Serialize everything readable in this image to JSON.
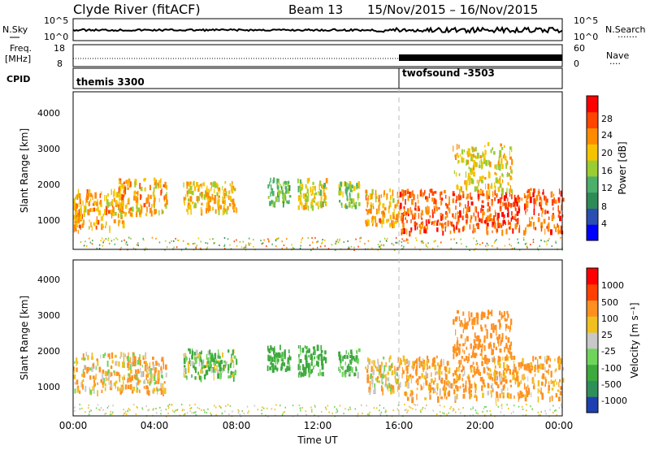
{
  "header": {
    "station": "Clyde River (fitACF)",
    "beam": "Beam 13",
    "date_range": "15/Nov/2015 – 16/Nov/2015"
  },
  "top_panels": {
    "nsky_label": "N.Sky",
    "nsearch_label": "N.Search",
    "nsky_ticks": [
      "10^5",
      "10^0"
    ],
    "nsearch_ticks": [
      "10^5",
      "10^0"
    ],
    "freq_label_1": "Freq.",
    "freq_label_2": "[MHz]",
    "freq_ticks": [
      "18",
      "8"
    ],
    "nave_label": "Nave",
    "nave_ticks": [
      "60",
      "0"
    ],
    "cpid_label": "CPID",
    "cpid_segments": [
      {
        "name": "themis 3300",
        "start_hour": 0,
        "end_hour": 16
      },
      {
        "name": "twofsound -3503",
        "start_hour": 16,
        "end_hour": 24
      }
    ]
  },
  "x_axis": {
    "label": "Time UT",
    "ticks": [
      "00:00",
      "04:00",
      "08:00",
      "12:00",
      "16:00",
      "20:00",
      "00:00"
    ]
  },
  "power_colorbar": {
    "title": "Power [dB]",
    "ticks": [
      "28",
      "24",
      "20",
      "16",
      "12",
      "8",
      "4"
    ],
    "colors": [
      "#0000ff",
      "#2a4fb0",
      "#2e8b57",
      "#4caf6a",
      "#9acd32",
      "#f5c400",
      "#ff8c00",
      "#ff4500",
      "#ff0000"
    ]
  },
  "velocity_colorbar": {
    "title": "Velocity [m s⁻¹]",
    "ticks": [
      "1000",
      "500",
      "100",
      "25",
      "-25",
      "-100",
      "-500",
      "-1000"
    ],
    "colors": [
      "#1f3fb0",
      "#2f8f5a",
      "#3daa3d",
      "#6fd45a",
      "#c8c8c8",
      "#f0c020",
      "#ff9020",
      "#ff4000",
      "#ff0000"
    ]
  },
  "chart_data": [
    {
      "type": "heatmap",
      "title": "Power",
      "xlabel": "Time UT",
      "ylabel": "Slant Range [km]",
      "xlim_hours": [
        0,
        24
      ],
      "ylim": [
        180,
        4600
      ],
      "yticks": [
        "1000",
        "2000",
        "3000",
        "4000"
      ],
      "colorbar_label": "Power [dB]",
      "regions": [
        {
          "t0": 0.0,
          "t1": 0.4,
          "r0": 700,
          "r1": 1500,
          "value_db": 24
        },
        {
          "t0": 0.0,
          "t1": 2.5,
          "r0": 800,
          "r1": 1900,
          "value_db": 22
        },
        {
          "t0": 2.2,
          "t1": 4.6,
          "r0": 1200,
          "r1": 2200,
          "value_db": 22
        },
        {
          "t0": 5.4,
          "t1": 8.0,
          "r0": 1300,
          "r1": 2100,
          "value_db": 21
        },
        {
          "t0": 9.5,
          "t1": 10.6,
          "r0": 1500,
          "r1": 2200,
          "value_db": 13
        },
        {
          "t0": 11.0,
          "t1": 12.4,
          "r0": 1400,
          "r1": 2200,
          "value_db": 18
        },
        {
          "t0": 13.0,
          "t1": 14.0,
          "r0": 1400,
          "r1": 2100,
          "value_db": 15
        },
        {
          "t0": 14.3,
          "t1": 16.0,
          "r0": 900,
          "r1": 1900,
          "value_db": 22
        },
        {
          "t0": 16.0,
          "t1": 24.0,
          "r0": 700,
          "r1": 1900,
          "value_db": 27
        },
        {
          "t0": 18.6,
          "t1": 21.5,
          "r0": 1800,
          "r1": 3200,
          "value_db": 19
        }
      ]
    },
    {
      "type": "heatmap",
      "title": "Velocity",
      "xlabel": "Time UT",
      "ylabel": "Slant Range [km]",
      "xlim_hours": [
        0,
        24
      ],
      "ylim": [
        180,
        4600
      ],
      "yticks": [
        "1000",
        "2000",
        "3000",
        "4000"
      ],
      "colorbar_label": "Velocity [m s⁻¹]",
      "regions": [
        {
          "t0": 0.0,
          "t1": 4.6,
          "r0": 900,
          "r1": 2000,
          "value_ms": 80
        },
        {
          "t0": 5.4,
          "t1": 8.0,
          "r0": 1300,
          "r1": 2100,
          "value_ms": -80
        },
        {
          "t0": 9.5,
          "t1": 10.6,
          "r0": 1500,
          "r1": 2200,
          "value_ms": -200
        },
        {
          "t0": 11.0,
          "t1": 12.4,
          "r0": 1400,
          "r1": 2200,
          "value_ms": -200
        },
        {
          "t0": 13.0,
          "t1": 14.0,
          "r0": 1400,
          "r1": 2100,
          "value_ms": -150
        },
        {
          "t0": 14.3,
          "t1": 16.0,
          "r0": 900,
          "r1": 1900,
          "value_ms": 60
        },
        {
          "t0": 16.0,
          "t1": 24.0,
          "r0": 700,
          "r1": 1900,
          "value_ms": 150
        },
        {
          "t0": 18.6,
          "t1": 21.5,
          "r0": 1800,
          "r1": 3200,
          "value_ms": 300
        }
      ]
    }
  ]
}
